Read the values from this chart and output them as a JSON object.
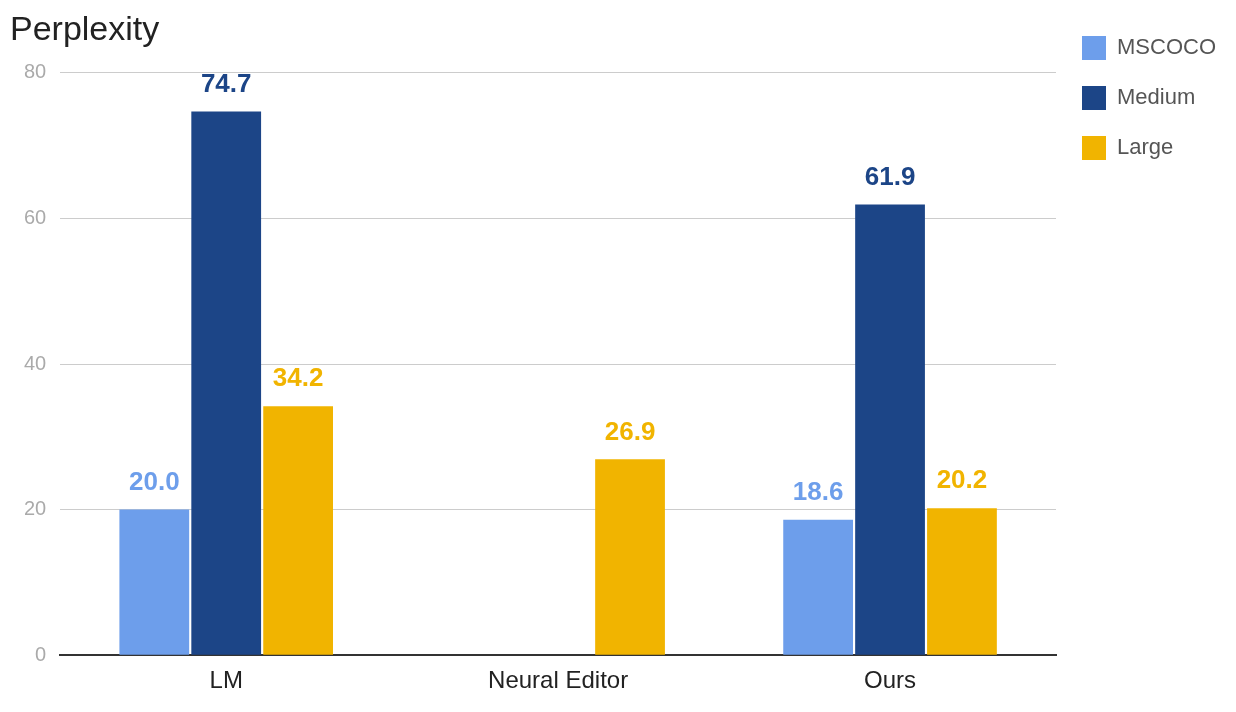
{
  "chart_data": {
    "type": "bar",
    "title": "Perplexity",
    "categories": [
      "LM",
      "Neural Editor",
      "Ours"
    ],
    "series": [
      {
        "name": "MSCOCO",
        "color": "#6d9eeb",
        "values": [
          20.0,
          null,
          18.6
        ],
        "value_labels": [
          "20.0",
          null,
          "18.6"
        ]
      },
      {
        "name": "Medium",
        "color": "#1c4587",
        "values": [
          74.7,
          null,
          61.9
        ],
        "value_labels": [
          "74.7",
          null,
          "61.9"
        ]
      },
      {
        "name": "Large",
        "color": "#f1b400",
        "values": [
          34.2,
          26.9,
          20.2
        ],
        "value_labels": [
          "34.2",
          "26.9",
          "20.2"
        ]
      }
    ],
    "ylim": [
      0,
      80
    ],
    "yticks": [
      0,
      20,
      40,
      60,
      80
    ],
    "grid": "y",
    "legend": "right"
  }
}
